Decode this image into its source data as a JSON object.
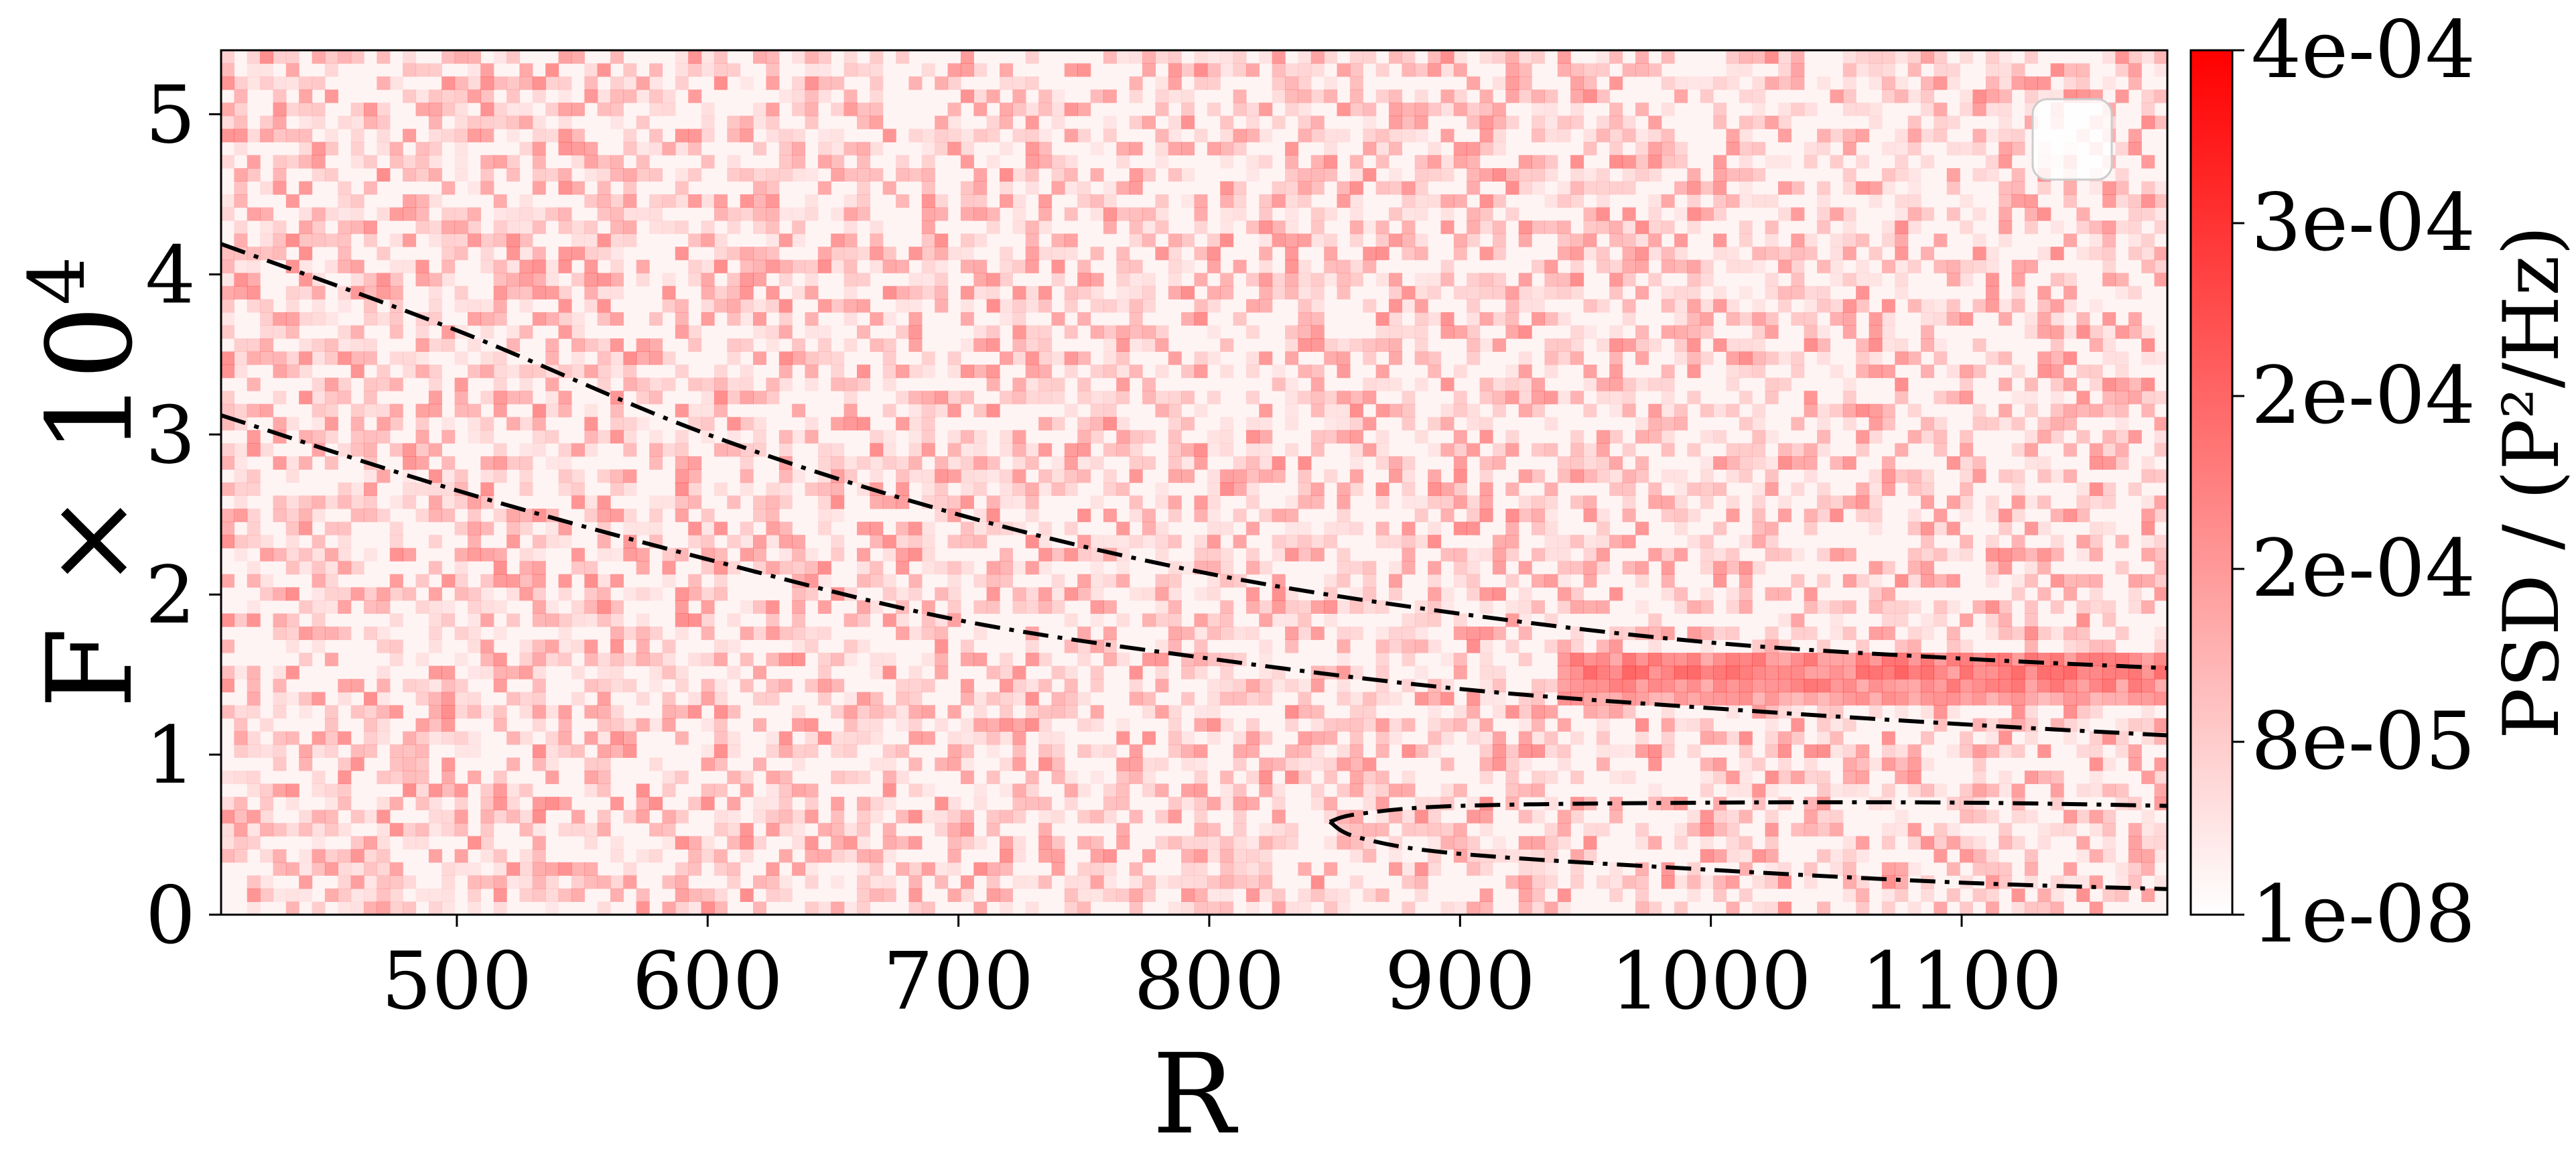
{
  "chart_data": {
    "type": "heatmap",
    "title": "",
    "xlabel": "R",
    "ylabel_base": "F × 10",
    "ylabel_exp": "4",
    "xlim": [
      406,
      1182
    ],
    "ylim": [
      0,
      5.4
    ],
    "xticks": [
      500,
      600,
      700,
      800,
      900,
      1000,
      1100
    ],
    "yticks": [
      0,
      1,
      2,
      3,
      4,
      5
    ],
    "colormap": "white-to-red",
    "colors": {
      "low": "#ffffff",
      "high": "#ff0000",
      "background": "#fff4f4",
      "curve": "#000000"
    },
    "colorbar": {
      "label": "PSD / (P²/Hz)",
      "min": 1e-08,
      "max": 0.0004,
      "ticks": [
        {
          "value": 1e-08,
          "label": "1e-08"
        },
        {
          "value": 8e-05,
          "label": "8e-05"
        },
        {
          "value": 0.00016,
          "label": "2e-04"
        },
        {
          "value": 0.00024,
          "label": "2e-04"
        },
        {
          "value": 0.00032,
          "label": "3e-04"
        },
        {
          "value": 0.0004,
          "label": "4e-04"
        }
      ]
    },
    "series": [
      {
        "name": "upper-curve",
        "style": "dash-dot",
        "points": [
          [
            406,
            4.19
          ],
          [
            500,
            3.65
          ],
          [
            600,
            3.0
          ],
          [
            700,
            2.5
          ],
          [
            800,
            2.13
          ],
          [
            900,
            1.88
          ],
          [
            1000,
            1.7
          ],
          [
            1100,
            1.6
          ],
          [
            1182,
            1.54
          ]
        ]
      },
      {
        "name": "lower-curve",
        "style": "dash-dot",
        "points": [
          [
            406,
            3.12
          ],
          [
            500,
            2.65
          ],
          [
            600,
            2.22
          ],
          [
            700,
            1.84
          ],
          [
            800,
            1.6
          ],
          [
            900,
            1.41
          ],
          [
            1000,
            1.29
          ],
          [
            1100,
            1.19
          ],
          [
            1182,
            1.12
          ]
        ]
      },
      {
        "name": "closed-contour-upper",
        "style": "dash-dot",
        "points": [
          [
            848,
            0.58
          ],
          [
            860,
            0.63
          ],
          [
            900,
            0.68
          ],
          [
            1000,
            0.7
          ],
          [
            1100,
            0.7
          ],
          [
            1182,
            0.68
          ]
        ]
      },
      {
        "name": "closed-contour-lower",
        "style": "dash-dot",
        "points": [
          [
            848,
            0.58
          ],
          [
            860,
            0.48
          ],
          [
            900,
            0.38
          ],
          [
            1000,
            0.28
          ],
          [
            1100,
            0.2
          ],
          [
            1182,
            0.16
          ]
        ]
      }
    ],
    "hotspots": [
      {
        "r_from": 940,
        "r_to": 1182,
        "f": 1.55,
        "intensity": 0.85
      },
      {
        "r_from": 940,
        "r_to": 1182,
        "f": 1.4,
        "intensity": 0.7
      }
    ],
    "legend": {
      "position": "top-right",
      "entries": []
    }
  }
}
